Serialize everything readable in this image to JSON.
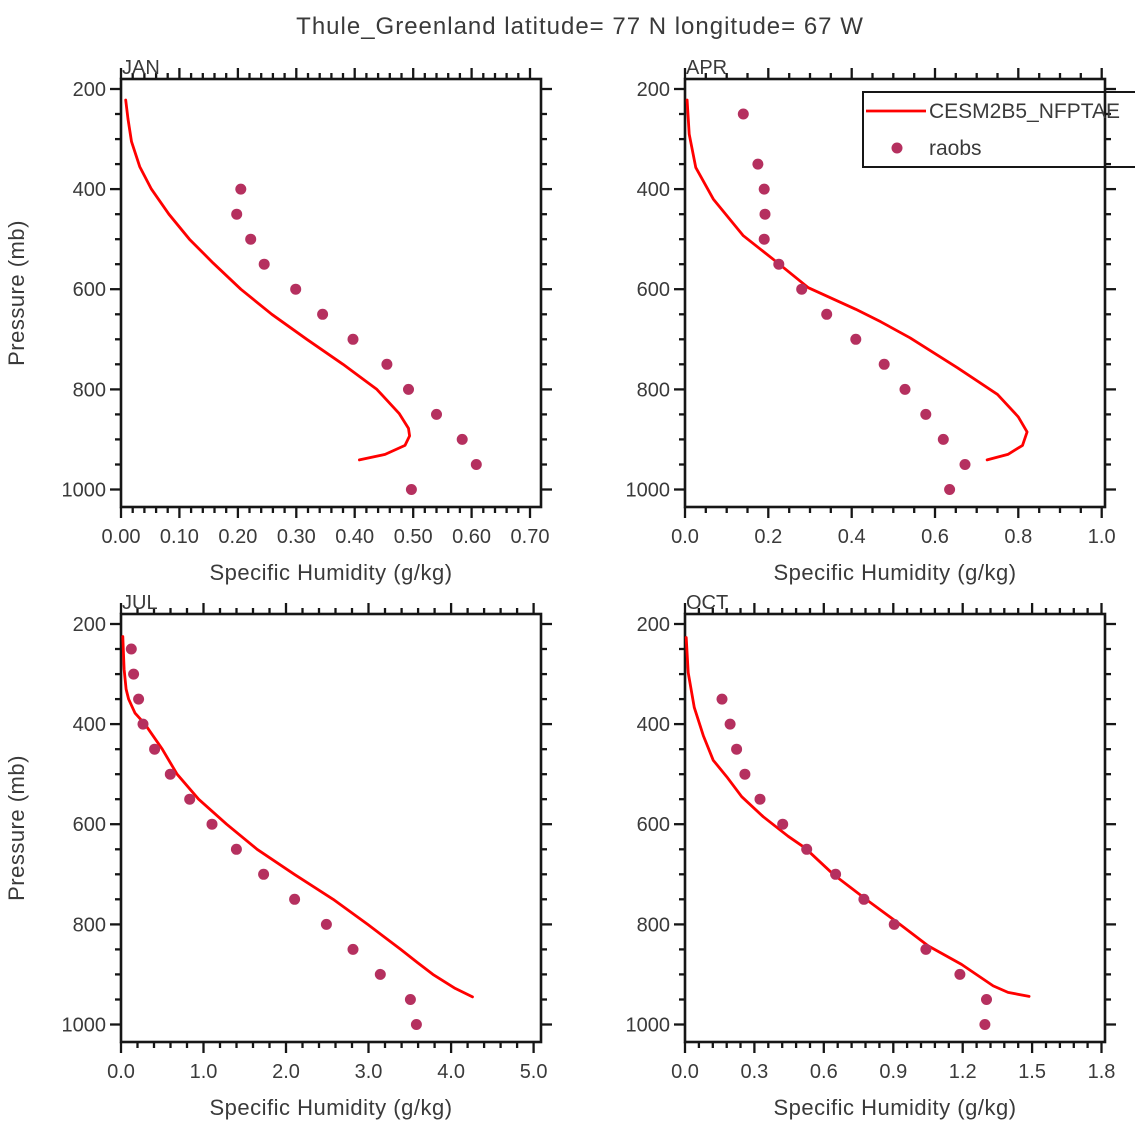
{
  "page_title": "Thule_Greenland  latitude= 77 N longitude= 67 W",
  "colors": {
    "model_line": "#ff0000",
    "raobs_dot": "#b5305f",
    "axis": "#161616",
    "text": "#3a3a3a",
    "background": "#ffffff"
  },
  "legend": {
    "position": "top-right-of-APR-panel",
    "items": [
      {
        "marker": "line",
        "label": "CESM2B5_NFPTAE"
      },
      {
        "marker": "dot",
        "label": "raobs"
      }
    ]
  },
  "y_axis": {
    "label": "Pressure (mb)",
    "ticks": [
      200,
      400,
      600,
      800,
      1000
    ],
    "minor_step": 50,
    "domain": [
      180,
      1035
    ],
    "inverted": true
  },
  "chart_data": [
    {
      "type": "line+scatter",
      "label": "JAN",
      "xlabel": "Specific Humidity (g/kg)",
      "ylabel": "Pressure (mb)",
      "xlim": [
        0.0,
        0.7
      ],
      "ylim": [
        200,
        1000
      ],
      "x_ticks": {
        "values": [
          0,
          0.1,
          0.2,
          0.3,
          0.4,
          0.5,
          0.6,
          0.7
        ],
        "labels": [
          "0.00",
          "0.10",
          "0.20",
          "0.30",
          "0.40",
          "0.50",
          "0.60",
          "0.70"
        ]
      },
      "x_minor_step": 0.02,
      "series": [
        {
          "name": "CESM2B5_NFPTAE",
          "type": "line",
          "color": "#ff0000",
          "points": [
            [
              0.008,
              222
            ],
            [
              0.012,
              260
            ],
            [
              0.018,
              305
            ],
            [
              0.032,
              355
            ],
            [
              0.052,
              400
            ],
            [
              0.082,
              450
            ],
            [
              0.117,
              500
            ],
            [
              0.158,
              548
            ],
            [
              0.205,
              600
            ],
            [
              0.258,
              650
            ],
            [
              0.318,
              700
            ],
            [
              0.38,
              750
            ],
            [
              0.438,
              800
            ],
            [
              0.476,
              848
            ],
            [
              0.492,
              878
            ],
            [
              0.494,
              893
            ],
            [
              0.486,
              912
            ],
            [
              0.452,
              930
            ],
            [
              0.408,
              941
            ]
          ]
        },
        {
          "name": "raobs",
          "type": "scatter",
          "color": "#b5305f",
          "points": [
            [
              0.205,
              400
            ],
            [
              0.198,
              450
            ],
            [
              0.222,
              500
            ],
            [
              0.245,
              550
            ],
            [
              0.299,
              600
            ],
            [
              0.345,
              650
            ],
            [
              0.397,
              700
            ],
            [
              0.455,
              750
            ],
            [
              0.492,
              800
            ],
            [
              0.54,
              850
            ],
            [
              0.584,
              900
            ],
            [
              0.608,
              950
            ],
            [
              0.497,
              1000
            ]
          ]
        }
      ]
    },
    {
      "type": "line+scatter",
      "label": "APR",
      "xlabel": "Specific Humidity (g/kg)",
      "ylabel": "Pressure (mb)",
      "xlim": [
        0.0,
        1.0
      ],
      "ylim": [
        200,
        1000
      ],
      "x_ticks": {
        "values": [
          0,
          0.2,
          0.4,
          0.6,
          0.8,
          1.0
        ],
        "labels": [
          "0.0",
          "0.2",
          "0.4",
          "0.6",
          "0.8",
          "1.0"
        ]
      },
      "x_minor_step": 0.05,
      "series": [
        {
          "name": "CESM2B5_NFPTAE",
          "type": "line",
          "color": "#ff0000",
          "points": [
            [
              0.005,
              222
            ],
            [
              0.01,
              290
            ],
            [
              0.026,
              357
            ],
            [
              0.068,
              420
            ],
            [
              0.14,
              493
            ],
            [
              0.216,
              543
            ],
            [
              0.296,
              597
            ],
            [
              0.41,
              640
            ],
            [
              0.47,
              665
            ],
            [
              0.54,
              697
            ],
            [
              0.654,
              757
            ],
            [
              0.75,
              810
            ],
            [
              0.8,
              855
            ],
            [
              0.821,
              885
            ],
            [
              0.81,
              912
            ],
            [
              0.775,
              930
            ],
            [
              0.725,
              941
            ]
          ]
        },
        {
          "name": "raobs",
          "type": "scatter",
          "color": "#b5305f",
          "points": [
            [
              0.14,
              250
            ],
            [
              0.175,
              350
            ],
            [
              0.19,
              400
            ],
            [
              0.192,
              450
            ],
            [
              0.19,
              500
            ],
            [
              0.225,
              550
            ],
            [
              0.28,
              600
            ],
            [
              0.34,
              650
            ],
            [
              0.41,
              700
            ],
            [
              0.478,
              750
            ],
            [
              0.528,
              800
            ],
            [
              0.578,
              850
            ],
            [
              0.62,
              900
            ],
            [
              0.672,
              950
            ],
            [
              0.635,
              1000
            ]
          ]
        }
      ]
    },
    {
      "type": "line+scatter",
      "label": "JUL",
      "xlabel": "Specific Humidity (g/kg)",
      "ylabel": "Pressure (mb)",
      "xlim": [
        0.0,
        5.0
      ],
      "ylim": [
        200,
        1000
      ],
      "x_ticks": {
        "values": [
          0,
          1,
          2,
          3,
          4,
          5
        ],
        "labels": [
          "0.0",
          "1.0",
          "2.0",
          "3.0",
          "4.0",
          "5.0"
        ]
      },
      "x_minor_step": 0.2,
      "series": [
        {
          "name": "CESM2B5_NFPTAE",
          "type": "line",
          "color": "#ff0000",
          "points": [
            [
              0.022,
              225
            ],
            [
              0.038,
              290
            ],
            [
              0.062,
              330
            ],
            [
              0.092,
              350
            ],
            [
              0.17,
              378
            ],
            [
              0.29,
              400
            ],
            [
              0.5,
              450
            ],
            [
              0.68,
              500
            ],
            [
              0.94,
              550
            ],
            [
              1.28,
              600
            ],
            [
              1.65,
              650
            ],
            [
              2.1,
              700
            ],
            [
              2.57,
              750
            ],
            [
              2.99,
              800
            ],
            [
              3.39,
              850
            ],
            [
              3.59,
              876
            ],
            [
              3.78,
              900
            ],
            [
              4.05,
              928
            ],
            [
              4.26,
              945
            ]
          ]
        },
        {
          "name": "raobs",
          "type": "scatter",
          "color": "#b5305f",
          "points": [
            [
              0.125,
              250
            ],
            [
              0.153,
              300
            ],
            [
              0.213,
              350
            ],
            [
              0.267,
              400
            ],
            [
              0.407,
              450
            ],
            [
              0.598,
              500
            ],
            [
              0.832,
              550
            ],
            [
              1.103,
              600
            ],
            [
              1.398,
              650
            ],
            [
              1.728,
              700
            ],
            [
              2.104,
              750
            ],
            [
              2.489,
              800
            ],
            [
              2.812,
              850
            ],
            [
              3.143,
              900
            ],
            [
              3.507,
              950
            ],
            [
              3.58,
              1000
            ]
          ]
        }
      ]
    },
    {
      "type": "line+scatter",
      "label": "OCT",
      "xlabel": "Specific Humidity (g/kg)",
      "ylabel": "Pressure (mb)",
      "xlim": [
        0.0,
        1.8
      ],
      "ylim": [
        200,
        1000
      ],
      "x_ticks": {
        "values": [
          0,
          0.3,
          0.6,
          0.9,
          1.2,
          1.5,
          1.8
        ],
        "labels": [
          "0.0",
          "0.3",
          "0.6",
          "0.9",
          "1.2",
          "1.5",
          "1.8"
        ]
      },
      "x_minor_step": 0.06,
      "series": [
        {
          "name": "CESM2B5_NFPTAE",
          "type": "line",
          "color": "#ff0000",
          "points": [
            [
              0.005,
              227
            ],
            [
              0.014,
              297
            ],
            [
              0.04,
              367
            ],
            [
              0.079,
              423
            ],
            [
              0.122,
              472
            ],
            [
              0.18,
              505
            ],
            [
              0.245,
              545
            ],
            [
              0.338,
              585
            ],
            [
              0.446,
              624
            ],
            [
              0.518,
              647
            ],
            [
              0.641,
              700
            ],
            [
              0.782,
              750
            ],
            [
              0.929,
              800
            ],
            [
              1.051,
              843
            ],
            [
              1.195,
              880
            ],
            [
              1.332,
              923
            ],
            [
              1.396,
              936
            ],
            [
              1.487,
              944
            ]
          ]
        },
        {
          "name": "raobs",
          "type": "scatter",
          "color": "#b5305f",
          "points": [
            [
              0.16,
              350
            ],
            [
              0.195,
              400
            ],
            [
              0.223,
              450
            ],
            [
              0.259,
              500
            ],
            [
              0.324,
              550
            ],
            [
              0.422,
              600
            ],
            [
              0.526,
              650
            ],
            [
              0.651,
              700
            ],
            [
              0.773,
              750
            ],
            [
              0.904,
              800
            ],
            [
              1.041,
              850
            ],
            [
              1.188,
              900
            ],
            [
              1.303,
              950
            ],
            [
              1.296,
              1000
            ]
          ]
        }
      ]
    }
  ]
}
